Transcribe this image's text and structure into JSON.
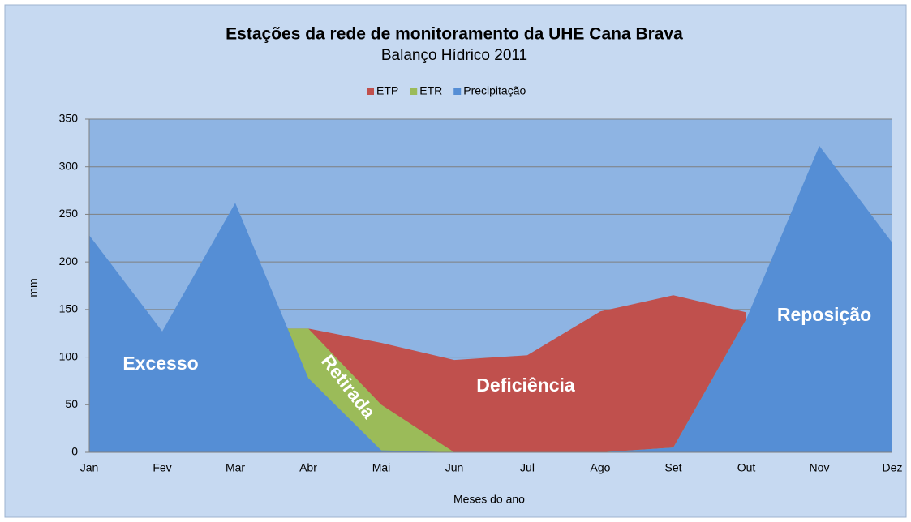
{
  "chart_data": {
    "type": "area",
    "title": "Estações da rede de monitoramento da UHE Cana Brava",
    "subtitle": "Balanço Hídrico 2011",
    "x_label": "Meses do ano",
    "y_label": "mm",
    "categories": [
      "Jan",
      "Fev",
      "Mar",
      "Abr",
      "Mai",
      "Jun",
      "Jul",
      "Ago",
      "Set",
      "Out",
      "Nov",
      "Dez"
    ],
    "series": [
      {
        "name": "ETP",
        "color": "#c0504d",
        "values": [
          null,
          null,
          130,
          130,
          115,
          97,
          102,
          148,
          165,
          147,
          null,
          null
        ]
      },
      {
        "name": "ETR",
        "color": "#9bbb59",
        "values": [
          null,
          null,
          130,
          130,
          50,
          0,
          0,
          0,
          5,
          140,
          null,
          null
        ]
      },
      {
        "name": "Precipitação",
        "color": "#558ed5",
        "values": [
          228,
          127,
          262,
          78,
          2,
          0,
          0,
          0,
          5,
          140,
          322,
          220
        ]
      }
    ],
    "ylim": [
      0,
      350
    ],
    "yticks": [
      0,
      50,
      100,
      150,
      200,
      250,
      300,
      350
    ],
    "grid": true,
    "legend": "top",
    "annotations": [
      "Excesso",
      "Retirada",
      "Deficiência",
      "Reposição"
    ]
  }
}
